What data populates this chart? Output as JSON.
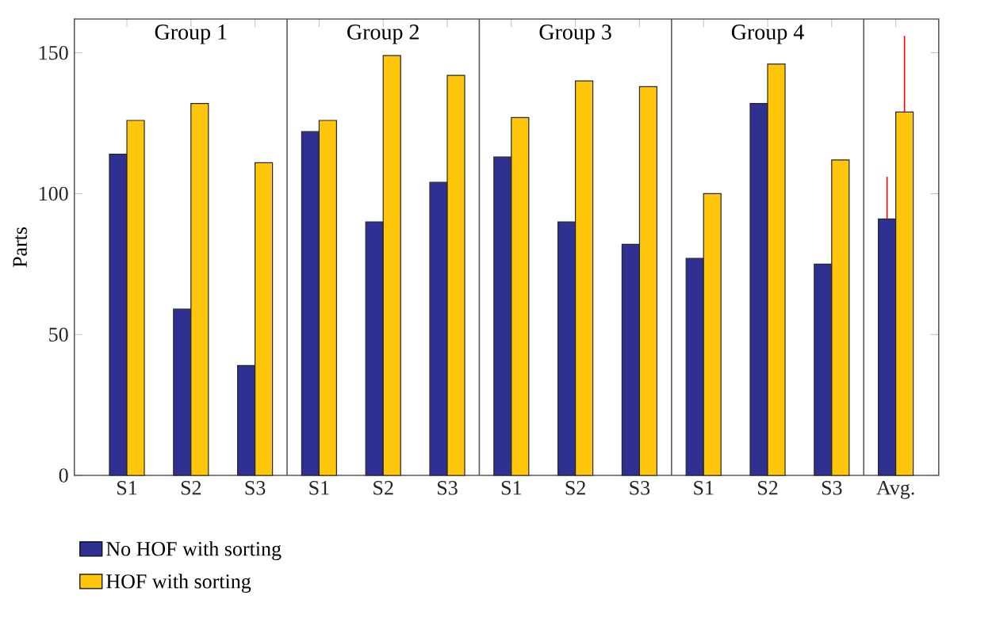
{
  "chart_data": {
    "type": "bar",
    "ylabel": "Parts",
    "categories": [
      "S1",
      "S2",
      "S3",
      "S1",
      "S2",
      "S3",
      "S1",
      "S2",
      "S3",
      "S1",
      "S2",
      "S3",
      "Avg."
    ],
    "series": [
      {
        "name": "No HOF with sorting",
        "color": "#2e3192",
        "values": [
          114,
          59,
          39,
          122,
          90,
          104,
          113,
          90,
          82,
          77,
          132,
          75,
          91
        ],
        "errors": [
          null,
          null,
          null,
          null,
          null,
          null,
          null,
          null,
          null,
          null,
          null,
          null,
          [
            91,
            106
          ]
        ]
      },
      {
        "name": "HOF with sorting",
        "color": "#ffc60b",
        "values": [
          126,
          132,
          111,
          126,
          149,
          142,
          127,
          140,
          138,
          100,
          146,
          112,
          129
        ],
        "errors": [
          null,
          null,
          null,
          null,
          null,
          null,
          null,
          null,
          null,
          null,
          null,
          null,
          [
            129,
            156
          ]
        ]
      }
    ],
    "annotations": [
      "Group 1",
      "Group 2",
      "Group 3",
      "Group 4"
    ],
    "ylim": [
      0,
      162
    ],
    "yticks": [
      0,
      50,
      100,
      150
    ],
    "legend": "bottom left",
    "grid": false
  }
}
